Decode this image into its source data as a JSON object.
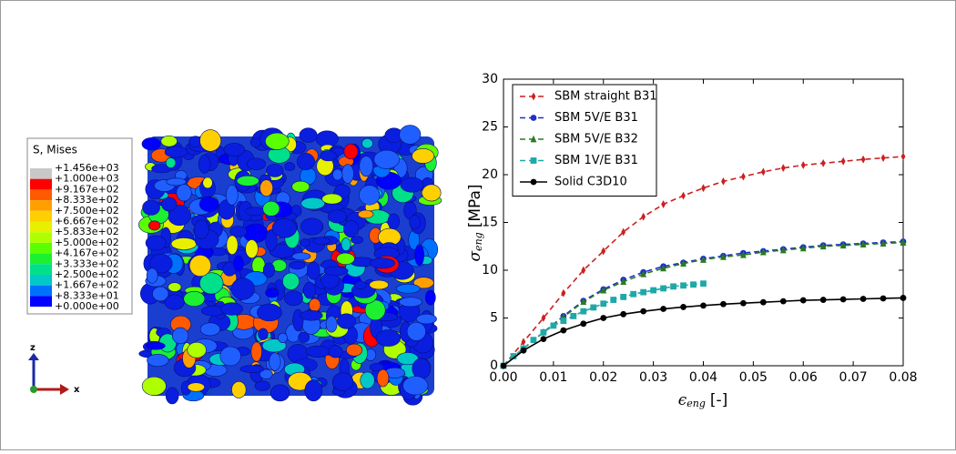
{
  "contour_legend": {
    "title": "S, Mises",
    "labels": [
      "+1.456e+03",
      "+1.000e+03",
      "+9.167e+02",
      "+8.333e+02",
      "+7.500e+02",
      "+6.667e+02",
      "+5.833e+02",
      "+5.000e+02",
      "+4.167e+02",
      "+3.333e+02",
      "+2.500e+02",
      "+1.667e+02",
      "+8.333e+01",
      "+0.000e+00"
    ],
    "colors": [
      "#c8c8c8",
      "#ff0000",
      "#ff5a00",
      "#ffa000",
      "#ffd000",
      "#e8f000",
      "#b0ff00",
      "#5cff00",
      "#1cf030",
      "#00e08a",
      "#00c8c8",
      "#0070ff",
      "#0000ff"
    ]
  },
  "triad": {
    "z": "z",
    "x": "x"
  },
  "chart_data": {
    "type": "line",
    "ylabel": {
      "symbol": "σ",
      "sub": "eng",
      "unit": "[MPa]"
    },
    "xlabel": {
      "symbol": "ϵ",
      "sub": "eng",
      "unit": "[-]"
    },
    "xlim": [
      0,
      0.08
    ],
    "ylim": [
      0,
      30
    ],
    "xticks": [
      {
        "value": 0,
        "label": "0.00"
      },
      {
        "value": 0.01,
        "label": "0.01"
      },
      {
        "value": 0.02,
        "label": "0.02"
      },
      {
        "value": 0.03,
        "label": "0.03"
      },
      {
        "value": 0.04,
        "label": "0.04"
      },
      {
        "value": 0.05,
        "label": "0.05"
      },
      {
        "value": 0.06,
        "label": "0.06"
      },
      {
        "value": 0.07,
        "label": "0.07"
      },
      {
        "value": 0.08,
        "label": "0.08"
      }
    ],
    "yticks": [
      0,
      5,
      10,
      15,
      20,
      25,
      30
    ],
    "legend": "upper left",
    "series": [
      {
        "name": "SBM straight B31",
        "color": "#cc1f1f",
        "marker": "diamond",
        "dash": true,
        "x": [
          0,
          0.004,
          0.008,
          0.012,
          0.016,
          0.02,
          0.024,
          0.028,
          0.032,
          0.036,
          0.04,
          0.044,
          0.048,
          0.052,
          0.056,
          0.06,
          0.064,
          0.068,
          0.072,
          0.076,
          0.08
        ],
        "values": [
          0,
          2.5,
          5,
          7.6,
          10,
          12,
          14,
          15.6,
          16.9,
          17.8,
          18.6,
          19.3,
          19.8,
          20.3,
          20.7,
          21,
          21.2,
          21.4,
          21.6,
          21.75,
          21.9
        ]
      },
      {
        "name": "SBM 5V/E B31",
        "color": "#1f2fcc",
        "marker": "circle",
        "dash": true,
        "x": [
          0,
          0.004,
          0.008,
          0.012,
          0.016,
          0.02,
          0.024,
          0.028,
          0.032,
          0.036,
          0.04,
          0.044,
          0.048,
          0.052,
          0.056,
          0.06,
          0.064,
          0.068,
          0.072,
          0.076,
          0.08
        ],
        "values": [
          0,
          1.8,
          3.5,
          5.2,
          6.8,
          8,
          9,
          9.8,
          10.4,
          10.8,
          11.2,
          11.5,
          11.8,
          12,
          12.2,
          12.4,
          12.6,
          12.7,
          12.8,
          12.9,
          13
        ]
      },
      {
        "name": "SBM 5V/E B32",
        "color": "#2a7a1f",
        "marker": "triangle",
        "dash": true,
        "x": [
          0,
          0.004,
          0.008,
          0.012,
          0.016,
          0.02,
          0.024,
          0.028,
          0.032,
          0.036,
          0.04,
          0.044,
          0.048,
          0.052,
          0.056,
          0.06,
          0.064,
          0.068,
          0.072,
          0.076,
          0.08
        ],
        "values": [
          0,
          1.8,
          3.5,
          5.1,
          6.7,
          7.9,
          8.8,
          9.6,
          10.2,
          10.7,
          11.1,
          11.4,
          11.6,
          11.9,
          12.1,
          12.3,
          12.5,
          12.6,
          12.7,
          12.8,
          12.9
        ]
      },
      {
        "name": "SBM 1V/E B31",
        "color": "#1fa8a8",
        "marker": "square",
        "dash": true,
        "x": [
          0,
          0.002,
          0.004,
          0.006,
          0.008,
          0.01,
          0.012,
          0.014,
          0.016,
          0.018,
          0.02,
          0.022,
          0.024,
          0.026,
          0.028,
          0.03,
          0.032,
          0.034,
          0.036,
          0.038,
          0.04
        ],
        "values": [
          0,
          1,
          1.8,
          2.7,
          3.5,
          4.2,
          4.7,
          5.2,
          5.7,
          6.1,
          6.5,
          6.9,
          7.2,
          7.5,
          7.7,
          7.9,
          8.1,
          8.3,
          8.4,
          8.5,
          8.6
        ]
      },
      {
        "name": "Solid C3D10",
        "color": "#000000",
        "marker": "circle",
        "dash": false,
        "x": [
          0,
          0.004,
          0.008,
          0.012,
          0.016,
          0.02,
          0.024,
          0.028,
          0.032,
          0.036,
          0.04,
          0.044,
          0.048,
          0.052,
          0.056,
          0.06,
          0.064,
          0.068,
          0.072,
          0.076,
          0.08
        ],
        "values": [
          0,
          1.6,
          2.8,
          3.7,
          4.4,
          5,
          5.4,
          5.7,
          5.95,
          6.15,
          6.3,
          6.45,
          6.55,
          6.65,
          6.75,
          6.85,
          6.9,
          6.95,
          7,
          7.05,
          7.1
        ]
      }
    ]
  }
}
